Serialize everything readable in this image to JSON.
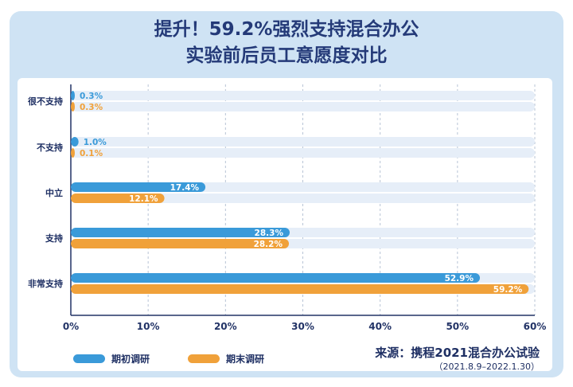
{
  "header": {
    "title_line1": "提升！59.2%强烈支持混合办公",
    "title_line2": "实验前后员工意愿度对比"
  },
  "source": {
    "label": "来源：携程2021混合办公试验",
    "date": "（2021.8.9–2022.1.30）"
  },
  "colors": {
    "initial": "#3a9ad9",
    "final": "#f0a13a",
    "track": "#e6eef8",
    "axis": "#223366",
    "grid": "#b8c4d6"
  },
  "chart_data": {
    "type": "bar",
    "orientation": "horizontal",
    "categories": [
      "很不支持",
      "不支持",
      "中立",
      "支持",
      "非常支持"
    ],
    "series": [
      {
        "name": "期初调研",
        "values": [
          0.3,
          1.0,
          17.4,
          28.3,
          52.9
        ]
      },
      {
        "name": "期末调研",
        "values": [
          0.3,
          0.1,
          12.1,
          28.2,
          59.2
        ]
      }
    ],
    "value_labels": [
      [
        "0.3%",
        "1.0%",
        "17.4%",
        "28.3%",
        "52.9%"
      ],
      [
        "0.3%",
        "0.1%",
        "12.1%",
        "28.2%",
        "59.2%"
      ]
    ],
    "xlim": [
      0,
      60
    ],
    "xticks": [
      "0%",
      "10%",
      "20%",
      "30%",
      "40%",
      "50%",
      "60%"
    ],
    "grid": true,
    "legend": "bottom-left"
  }
}
